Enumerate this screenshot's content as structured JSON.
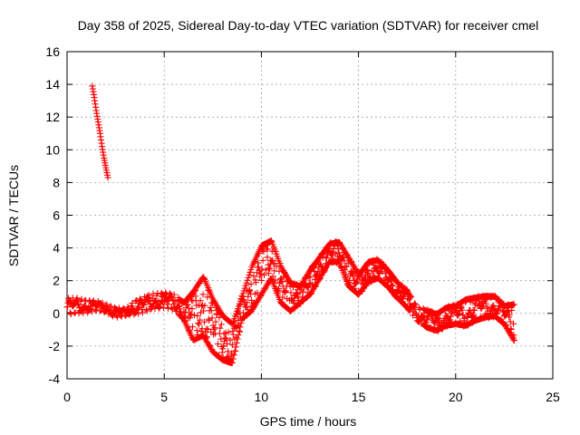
{
  "chart_data": {
    "type": "scatter",
    "title": "Day 358 of 2025, Sidereal Day-to-day VTEC variation (SDTVAR) for receiver cmel",
    "xlabel": "GPS time / hours",
    "ylabel": "SDTVAR / TECUs",
    "xlim": [
      0,
      25
    ],
    "ylim": [
      -4,
      16
    ],
    "xticks": [
      0,
      5,
      10,
      15,
      20,
      25
    ],
    "yticks": [
      -4,
      -2,
      0,
      2,
      4,
      6,
      8,
      10,
      12,
      14,
      16
    ],
    "grid": true,
    "marker": "+",
    "color": "#ff0000",
    "series": [
      {
        "name": "SDTVAR",
        "x": [
          1.3,
          1.4,
          1.5,
          1.6,
          1.7,
          1.8,
          1.9,
          2.0,
          2.1
        ],
        "y": [
          13.9,
          13.2,
          12.4,
          11.7,
          11.0,
          10.2,
          9.5,
          8.9,
          8.3
        ]
      }
    ],
    "envelope": [
      [
        0.0,
        -0.2,
        1.0
      ],
      [
        0.5,
        -0.1,
        1.0
      ],
      [
        1.0,
        0.0,
        0.9
      ],
      [
        1.5,
        0.1,
        0.8
      ],
      [
        2.0,
        0.0,
        0.6
      ],
      [
        2.5,
        -0.3,
        0.4
      ],
      [
        3.0,
        -0.2,
        0.3
      ],
      [
        3.5,
        -0.1,
        0.9
      ],
      [
        4.0,
        0.0,
        1.1
      ],
      [
        4.5,
        0.2,
        1.3
      ],
      [
        5.0,
        0.3,
        1.4
      ],
      [
        5.5,
        0.1,
        1.2
      ],
      [
        6.0,
        -0.5,
        0.8
      ],
      [
        6.5,
        -1.8,
        1.5
      ],
      [
        7.0,
        -1.5,
        2.4
      ],
      [
        7.5,
        -2.5,
        1.0
      ],
      [
        8.0,
        -3.0,
        0.0
      ],
      [
        8.5,
        -3.2,
        -0.5
      ],
      [
        9.0,
        -0.5,
        1.2
      ],
      [
        9.5,
        0.0,
        3.0
      ],
      [
        10.0,
        1.0,
        4.3
      ],
      [
        10.5,
        2.0,
        4.6
      ],
      [
        11.0,
        0.5,
        3.0
      ],
      [
        11.5,
        0.0,
        2.0
      ],
      [
        12.0,
        0.5,
        1.8
      ],
      [
        12.5,
        1.0,
        2.8
      ],
      [
        13.0,
        2.0,
        3.6
      ],
      [
        13.5,
        3.0,
        4.4
      ],
      [
        14.0,
        3.0,
        4.5
      ],
      [
        14.5,
        1.5,
        3.5
      ],
      [
        15.0,
        1.0,
        2.5
      ],
      [
        15.5,
        1.8,
        3.3
      ],
      [
        16.0,
        2.0,
        3.4
      ],
      [
        16.5,
        1.5,
        2.8
      ],
      [
        17.0,
        0.8,
        2.0
      ],
      [
        17.5,
        0.2,
        1.5
      ],
      [
        18.0,
        -0.5,
        0.5
      ],
      [
        18.5,
        -1.0,
        0.3
      ],
      [
        19.0,
        -1.2,
        0.1
      ],
      [
        19.5,
        -0.9,
        0.5
      ],
      [
        20.0,
        -0.8,
        0.6
      ],
      [
        20.5,
        -0.9,
        1.0
      ],
      [
        21.0,
        -0.6,
        1.1
      ],
      [
        21.5,
        -0.4,
        1.2
      ],
      [
        22.0,
        -0.3,
        1.2
      ],
      [
        22.5,
        -0.8,
        0.6
      ],
      [
        23.0,
        -1.8,
        0.7
      ]
    ]
  }
}
